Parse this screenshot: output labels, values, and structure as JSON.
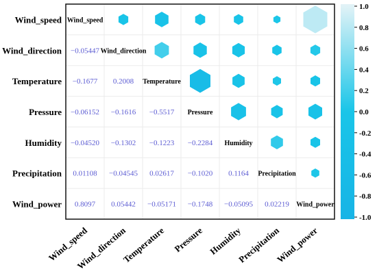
{
  "chart_data": {
    "type": "heatmap",
    "variables": [
      "Wind_speed",
      "Wind_direction",
      "Temperature",
      "Pressure",
      "Humidity",
      "Precipitation",
      "Wind_power"
    ],
    "lower_values": [
      [
        null,
        null,
        null,
        null,
        null,
        null,
        null
      ],
      [
        -0.05447,
        null,
        null,
        null,
        null,
        null,
        null
      ],
      [
        -0.1677,
        0.2008,
        null,
        null,
        null,
        null,
        null
      ],
      [
        -0.06152,
        -0.1616,
        -0.5517,
        null,
        null,
        null,
        null
      ],
      [
        -0.0452,
        -0.1302,
        -0.1223,
        -0.2284,
        null,
        null,
        null
      ],
      [
        0.01108,
        -0.04545,
        0.02617,
        -0.102,
        0.1164,
        null,
        null
      ],
      [
        0.8097,
        0.05442,
        -0.05171,
        -0.1748,
        -0.05095,
        0.02219,
        null
      ]
    ],
    "lower_labels": [
      [],
      [
        "−0.05447"
      ],
      [
        "−0.1677",
        "0.2008"
      ],
      [
        "−0.06152",
        "−0.1616",
        "−0.5517"
      ],
      [
        "−0.04520",
        "−0.1302",
        "−0.1223",
        "−0.2284"
      ],
      [
        "0.01108",
        "−0.04545",
        "0.02617",
        "−0.1020",
        "0.1164"
      ],
      [
        "0.8097",
        "0.05442",
        "−0.05171",
        "−0.1748",
        "−0.05095",
        "0.02219"
      ]
    ],
    "colorbar": {
      "range": [
        -1.0,
        1.0
      ],
      "ticks": [
        "1.0",
        "0.8",
        "0.6",
        "0.4",
        "0.2",
        "0.0",
        "-0.2",
        "-0.4",
        "-0.6",
        "-0.8",
        "-1.0"
      ],
      "colors": [
        "#18b4e6",
        "#19c5e8",
        "#e4f3f7"
      ]
    },
    "upper_glyph": "hexagon",
    "grid": true
  }
}
